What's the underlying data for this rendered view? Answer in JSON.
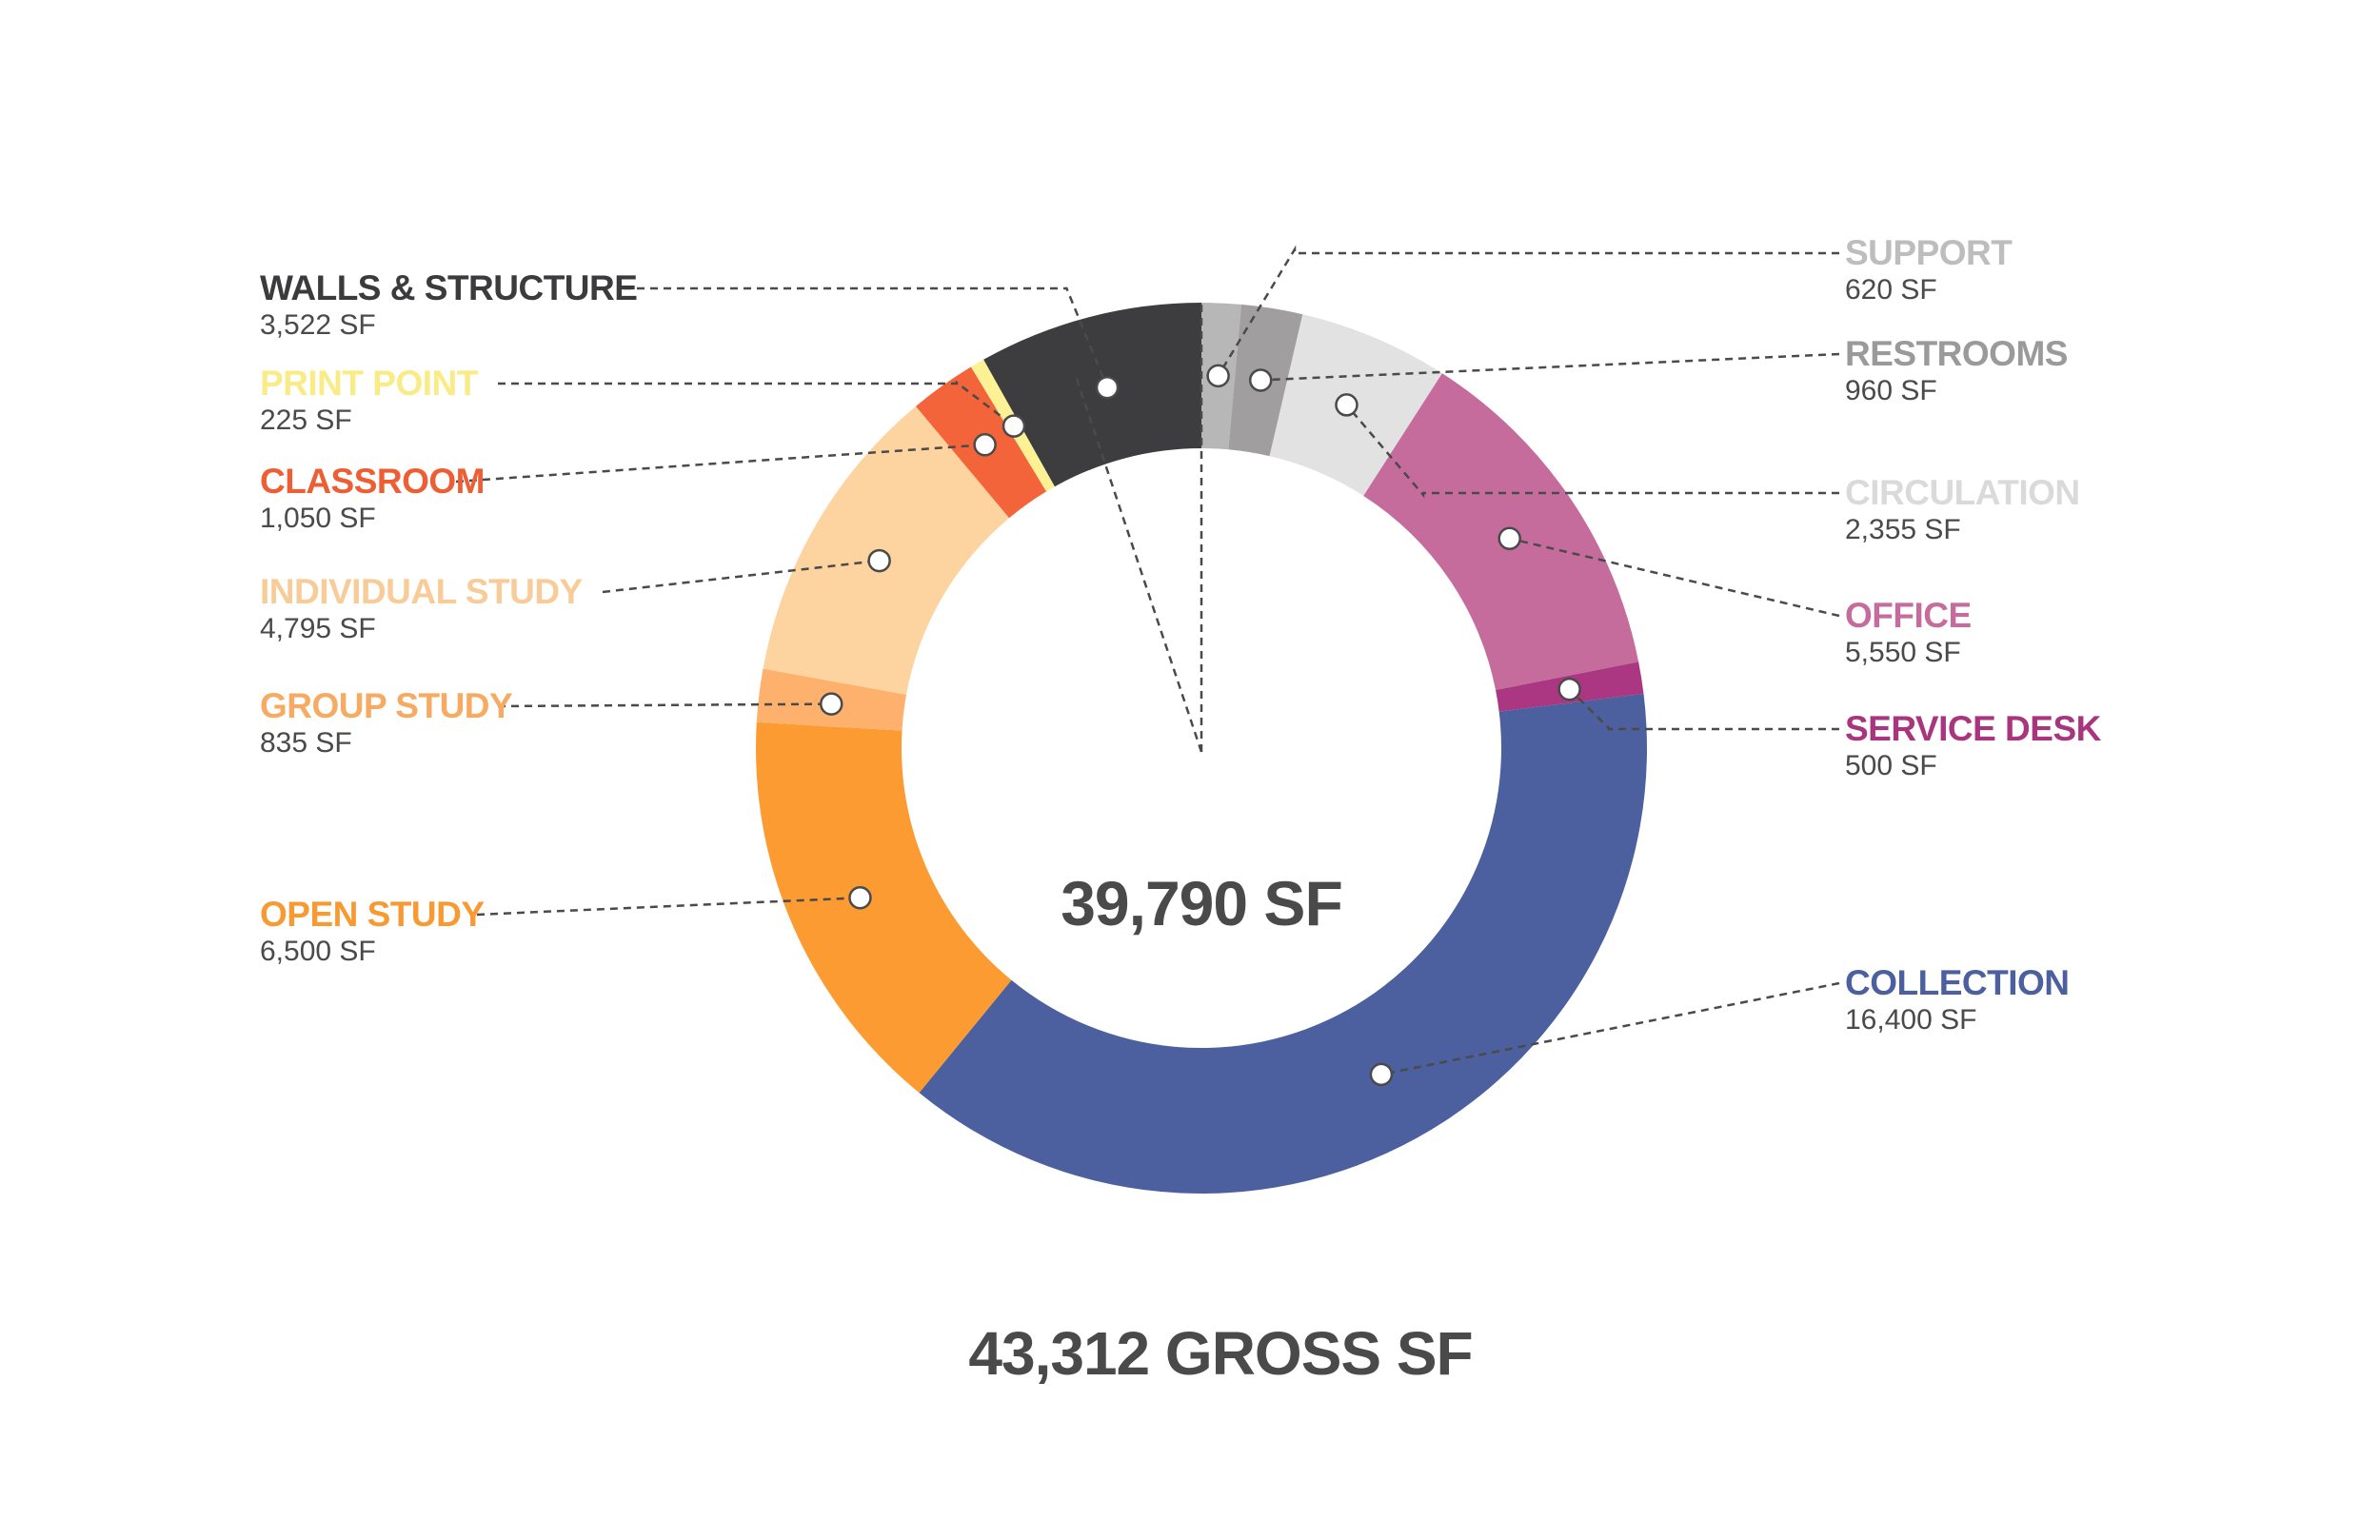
{
  "chart_data": {
    "type": "pie",
    "subtype": "donut",
    "title": "",
    "center_label": "39,790 SF",
    "footer_label": "43,312 GROSS SF",
    "unit": "SF",
    "slices": [
      {
        "name": "SUPPORT",
        "value": 620,
        "value_label": "620 SF",
        "color": "#b8b7b7",
        "label_color": "#bdbdbd",
        "side": "right"
      },
      {
        "name": "RESTROOMS",
        "value": 960,
        "value_label": "960 SF",
        "color": "#a09e9e",
        "label_color": "#9a9a9a",
        "side": "right"
      },
      {
        "name": "CIRCULATION",
        "value": 2355,
        "value_label": "2,355 SF",
        "color": "#e2e2e3",
        "label_color": "#dadada",
        "side": "right"
      },
      {
        "name": "OFFICE",
        "value": 5550,
        "value_label": "5,550 SF",
        "color": "#c56c9d",
        "label_color": "#c56c9d",
        "side": "right"
      },
      {
        "name": "SERVICE DESK",
        "value": 500,
        "value_label": "500 SF",
        "color": "#ab3681",
        "label_color": "#a8357e",
        "side": "right"
      },
      {
        "name": "COLLECTION",
        "value": 16400,
        "value_label": "16,400 SF",
        "color": "#4c5f9f",
        "label_color": "#4c5f9f",
        "side": "right"
      },
      {
        "name": "OPEN STUDY",
        "value": 6500,
        "value_label": "6,500 SF",
        "color": "#fb9b31",
        "label_color": "#f79a34",
        "side": "left"
      },
      {
        "name": "GROUP STUDY",
        "value": 835,
        "value_label": "835 SF",
        "color": "#fdb16c",
        "label_color": "#f7aa62",
        "side": "left"
      },
      {
        "name": "INDIVIDUAL STUDY",
        "value": 4795,
        "value_label": "4,795 SF",
        "color": "#fdd3a0",
        "label_color": "#f8cc98",
        "side": "left"
      },
      {
        "name": "CLASSROOM",
        "value": 1050,
        "value_label": "1,050 SF",
        "color": "#f4643a",
        "label_color": "#ee5e34",
        "side": "left"
      },
      {
        "name": "PRINT POINT",
        "value": 225,
        "value_label": "225 SF",
        "color": "#fdf196",
        "label_color": "#f9ec86",
        "side": "left"
      },
      {
        "name": "WALLS & STRUCTURE",
        "value": 3522,
        "value_label": "3,522 SF",
        "color": "#3d3d3f",
        "label_color": "#3b3b3d",
        "side": "left"
      }
    ]
  }
}
